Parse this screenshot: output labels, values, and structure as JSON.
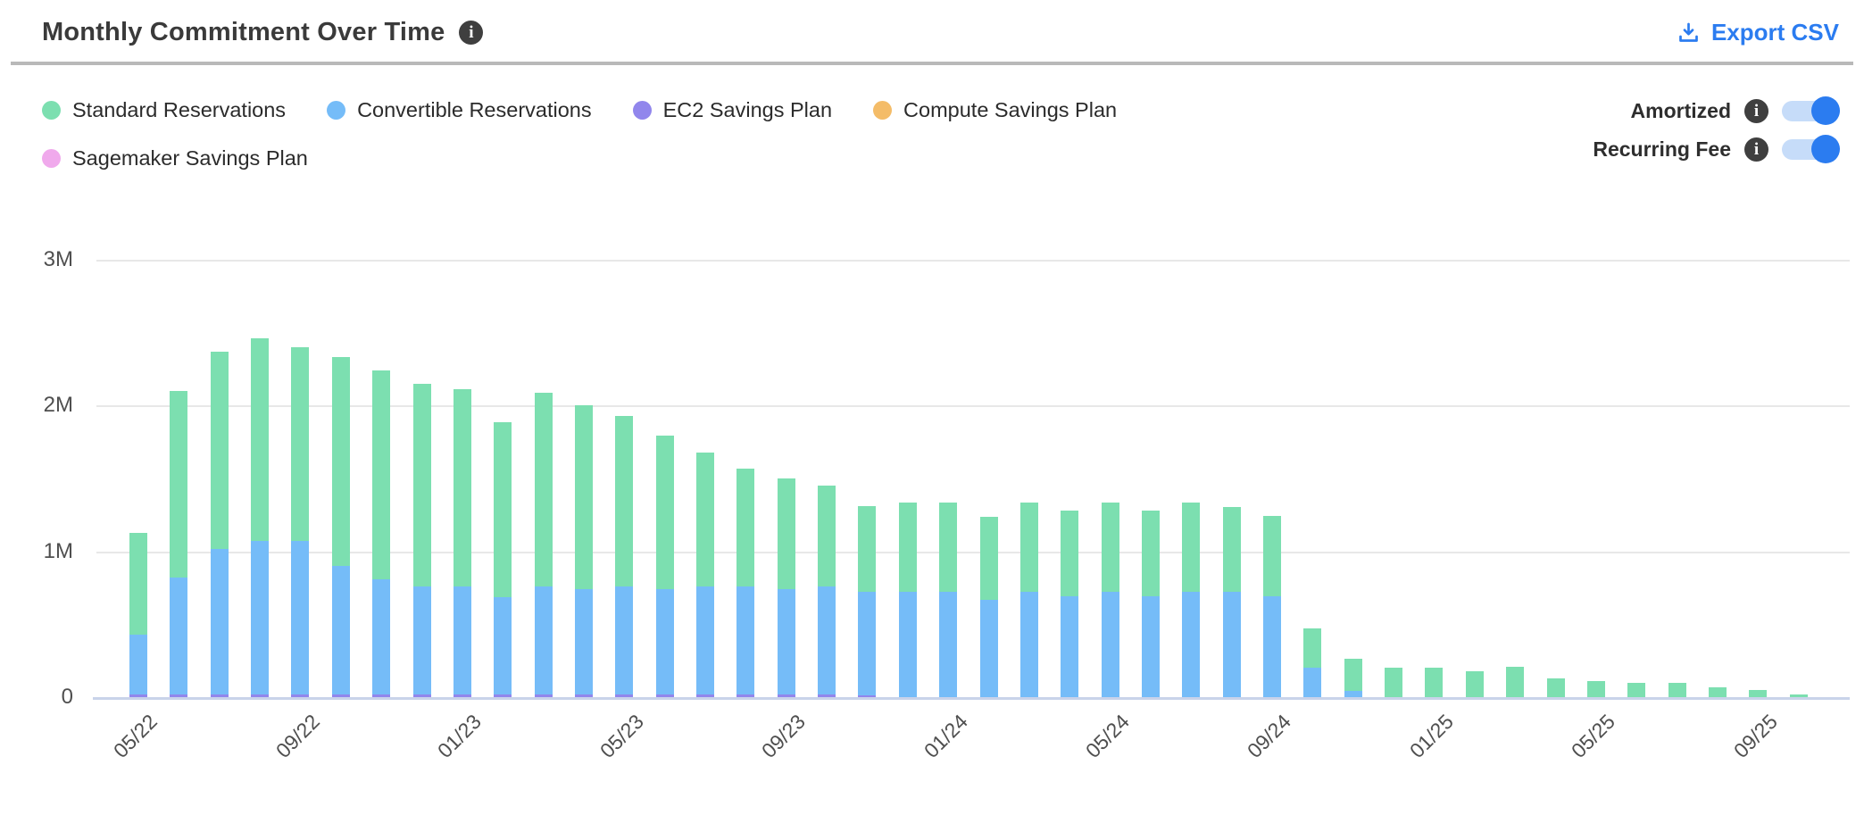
{
  "header": {
    "title": "Monthly Commitment Over Time",
    "title_info_icon": "info-icon",
    "export_label": "Export CSV",
    "export_icon": "download-icon"
  },
  "toggles": [
    {
      "label": "Amortized",
      "state": "on",
      "info_icon": "info-icon"
    },
    {
      "label": "Recurring Fee",
      "state": "on",
      "info_icon": "info-icon"
    }
  ],
  "colors": {
    "accent_blue": "#2b7cf0",
    "toggle_track": "#c6dcf9",
    "toggle_knob": "#2b7cf0",
    "info_icon_bg": "#3f3f3f",
    "title_text": "#3a3a3a",
    "legend_text": "#2b2b2b",
    "axis_text": "#4f4f4f",
    "gridline": "#e8e8e8",
    "axis_line": "#c9d3ea",
    "divider": "#b9b9b9"
  },
  "chart_data": {
    "type": "bar",
    "stacked": true,
    "title": "Monthly Commitment Over Time",
    "values_unit": "millions",
    "ylim": [
      0,
      3
    ],
    "y_ticks": [
      "3M",
      "2M",
      "1M",
      "0"
    ],
    "grid": true,
    "legend_position": "top-left",
    "x_label_every": 4,
    "x_tick_labels_shown": [
      "05/22",
      "09/22",
      "01/23",
      "05/23",
      "09/23",
      "01/24",
      "05/24",
      "09/24",
      "01/25",
      "05/25",
      "09/25"
    ],
    "stack_order_bottom_to_top": [
      "EC2 Savings Plan",
      "Convertible Reservations",
      "Standard Reservations",
      "Compute Savings Plan",
      "Sagemaker Savings Plan"
    ],
    "categories": [
      "05/22",
      "06/22",
      "07/22",
      "08/22",
      "09/22",
      "10/22",
      "11/22",
      "12/22",
      "01/23",
      "02/23",
      "03/23",
      "04/23",
      "05/23",
      "06/23",
      "07/23",
      "08/23",
      "09/23",
      "10/23",
      "11/23",
      "12/23",
      "01/24",
      "02/24",
      "03/24",
      "04/24",
      "05/24",
      "06/24",
      "07/24",
      "08/24",
      "09/24",
      "10/24",
      "11/24",
      "12/24",
      "01/25",
      "02/25",
      "03/25",
      "04/25",
      "05/25",
      "06/25",
      "07/25",
      "08/25",
      "09/25",
      "10/25"
    ],
    "series": [
      {
        "name": "Standard Reservations",
        "color": "#7cdfb0",
        "values": [
          0.7,
          1.28,
          1.35,
          1.39,
          1.33,
          1.43,
          1.43,
          1.39,
          1.35,
          1.2,
          1.33,
          1.26,
          1.17,
          1.05,
          0.92,
          0.81,
          0.76,
          0.69,
          0.59,
          0.61,
          0.61,
          0.57,
          0.61,
          0.59,
          0.61,
          0.59,
          0.61,
          0.58,
          0.55,
          0.27,
          0.22,
          0.2,
          0.2,
          0.18,
          0.21,
          0.13,
          0.11,
          0.1,
          0.1,
          0.07,
          0.05,
          0.02
        ]
      },
      {
        "name": "Convertible Reservations",
        "color": "#75bcf8",
        "values": [
          0.41,
          0.8,
          1.0,
          1.05,
          1.05,
          0.88,
          0.79,
          0.74,
          0.74,
          0.67,
          0.74,
          0.72,
          0.74,
          0.72,
          0.74,
          0.74,
          0.72,
          0.74,
          0.71,
          0.72,
          0.72,
          0.67,
          0.72,
          0.69,
          0.72,
          0.69,
          0.72,
          0.72,
          0.69,
          0.2,
          0.04,
          0,
          0,
          0,
          0,
          0,
          0,
          0,
          0,
          0,
          0,
          0
        ]
      },
      {
        "name": "EC2 Savings Plan",
        "color": "#9186ec",
        "values": [
          0.02,
          0.02,
          0.02,
          0.02,
          0.02,
          0.02,
          0.02,
          0.02,
          0.02,
          0.02,
          0.02,
          0.02,
          0.02,
          0.02,
          0.02,
          0.02,
          0.02,
          0.02,
          0.01,
          0,
          0,
          0,
          0,
          0,
          0,
          0,
          0,
          0,
          0,
          0,
          0,
          0,
          0,
          0,
          0,
          0,
          0,
          0,
          0,
          0,
          0,
          0
        ]
      },
      {
        "name": "Compute Savings Plan",
        "color": "#f4bc68",
        "values": [
          0,
          0,
          0,
          0,
          0,
          0,
          0,
          0,
          0,
          0,
          0,
          0,
          0,
          0,
          0,
          0,
          0,
          0,
          0,
          0,
          0,
          0,
          0,
          0,
          0,
          0,
          0,
          0,
          0,
          0,
          0,
          0,
          0,
          0,
          0,
          0,
          0,
          0,
          0,
          0,
          0,
          0
        ]
      },
      {
        "name": "Sagemaker Savings Plan",
        "color": "#f0a9ec",
        "values": [
          0,
          0,
          0,
          0,
          0,
          0,
          0,
          0,
          0,
          0,
          0,
          0,
          0,
          0,
          0,
          0,
          0,
          0,
          0,
          0,
          0,
          0,
          0,
          0,
          0,
          0,
          0,
          0,
          0,
          0,
          0,
          0,
          0,
          0,
          0,
          0,
          0,
          0,
          0,
          0,
          0,
          0
        ]
      }
    ]
  }
}
